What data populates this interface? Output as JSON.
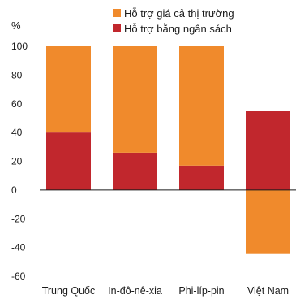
{
  "chart_data": {
    "type": "bar",
    "stacked": true,
    "categories": [
      "Trung Quốc",
      "In-đô-nê-xia",
      "Phi-líp-pin",
      "Việt Nam"
    ],
    "series": [
      {
        "name": "Hỗ trợ bằng ngân sách",
        "color": "#c1272d",
        "values": [
          40,
          26,
          17,
          55
        ]
      },
      {
        "name": "Hỗ trợ giá cả thị trường",
        "color": "#f08a2c",
        "values": [
          60,
          74,
          83,
          -44
        ]
      }
    ],
    "legend_order": [
      "Hỗ trợ giá cả thị trường",
      "Hỗ trợ bằng ngân sách"
    ],
    "legend_position": "top",
    "ylabel": "%",
    "ylim": [
      -60,
      100
    ],
    "yticks": [
      "100",
      "80",
      "60",
      "40",
      "20",
      "0",
      "-20",
      "-40",
      "-60"
    ],
    "grid": false
  }
}
